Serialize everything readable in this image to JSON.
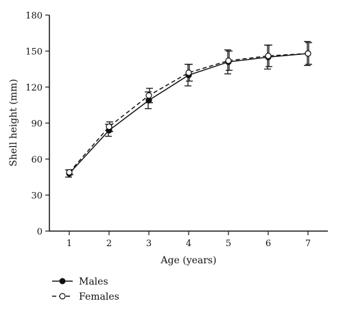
{
  "chart_data": {
    "type": "line",
    "title": "",
    "xlabel": "Age (years)",
    "ylabel": "Shell height (mm)",
    "x": [
      1,
      2,
      3,
      4,
      5,
      6,
      7
    ],
    "x_ticks": [
      "1",
      "2",
      "3",
      "4",
      "5",
      "6",
      "7"
    ],
    "xlim": [
      0.5,
      7.5
    ],
    "ylim": [
      0,
      180
    ],
    "y_ticks": [
      "0",
      "30",
      "60",
      "90",
      "120",
      "150",
      "180"
    ],
    "grid": false,
    "legend_position": "bottom-left",
    "series": [
      {
        "name": "Males",
        "marker": "filled-circle",
        "line_style": "solid",
        "color": "#111111",
        "values": [
          48,
          84,
          109,
          130,
          141,
          145,
          148
        ],
        "error": [
          3,
          5,
          7,
          9,
          10,
          10,
          10
        ]
      },
      {
        "name": "Females",
        "marker": "open-circle",
        "line_style": "dashed",
        "color": "#111111",
        "values": [
          49,
          87,
          113,
          132,
          142,
          146,
          148
        ],
        "error": [
          2,
          4,
          6,
          7,
          8,
          9,
          9
        ]
      }
    ]
  }
}
